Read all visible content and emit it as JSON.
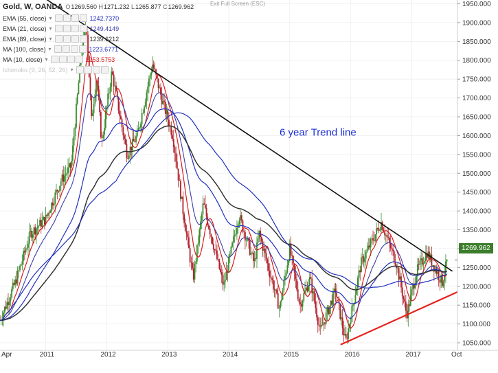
{
  "header": {
    "symbol": "Gold, W, OANDA",
    "open_label": "O",
    "open": "1269.560",
    "high_label": "H",
    "high": "1271.232",
    "low_label": "L",
    "low": "1265.877",
    "close_label": "C",
    "close": "1269.962",
    "exit_fullscreen": "Exit Full Screen (ESC)"
  },
  "indicators": [
    {
      "name": "EMA (55, close)",
      "value": "1242.7370",
      "color": "#1f2fbd"
    },
    {
      "name": "EMA (21, close)",
      "value": "1249.4149",
      "color": "#3a3fa6"
    },
    {
      "name": "EMA (89, close)",
      "value": "1239.6212",
      "color": "#333333"
    },
    {
      "name": "MA (100, close)",
      "value": "1223.6771",
      "color": "#1f2fbd"
    },
    {
      "name": "MA (10, close)",
      "value": "1253.5753",
      "color": "#d81b1b"
    },
    {
      "name": "Ichimoku (9, 26, 52, 26)",
      "value": "",
      "color": "#c7c7c7"
    }
  ],
  "current_price_tag": "1269.962",
  "colors": {
    "up": "#3b8c2e",
    "down": "#b0202a",
    "trend_black": "#111111",
    "trend_red": "#e8201a",
    "annotation": "#1c2fd6"
  },
  "chart_data": {
    "type": "line",
    "instrument": "Gold",
    "timeframe": "W",
    "x_axis": {
      "ticks": [
        "Apr",
        "2011",
        "2012",
        "2013",
        "2014",
        "2015",
        "2016",
        "2017",
        "Oct"
      ],
      "range": [
        "2010-04",
        "2017-10"
      ]
    },
    "y_axis": {
      "ticks": [
        1050,
        1100,
        1150,
        1200,
        1250,
        1300,
        1350,
        1400,
        1450,
        1500,
        1550,
        1600,
        1650,
        1700,
        1750,
        1800,
        1850,
        1900,
        1950
      ],
      "range": [
        1030,
        1960
      ]
    },
    "price_path": [
      [
        "2010-04",
        1110
      ],
      [
        "2010-07",
        1210
      ],
      [
        "2010-10",
        1340
      ],
      [
        "2011-01",
        1380
      ],
      [
        "2011-04",
        1480
      ],
      [
        "2011-06",
        1520
      ],
      [
        "2011-08",
        1820
      ],
      [
        "2011-09",
        1900
      ],
      [
        "2011-10",
        1640
      ],
      [
        "2011-11",
        1760
      ],
      [
        "2011-12",
        1580
      ],
      [
        "2012-02",
        1770
      ],
      [
        "2012-05",
        1550
      ],
      [
        "2012-07",
        1600
      ],
      [
        "2012-10",
        1790
      ],
      [
        "2012-12",
        1690
      ],
      [
        "2013-02",
        1600
      ],
      [
        "2013-04",
        1400
      ],
      [
        "2013-06",
        1220
      ],
      [
        "2013-08",
        1420
      ],
      [
        "2013-12",
        1200
      ],
      [
        "2014-03",
        1390
      ],
      [
        "2014-06",
        1260
      ],
      [
        "2014-07",
        1340
      ],
      [
        "2014-11",
        1140
      ],
      [
        "2015-01",
        1300
      ],
      [
        "2015-03",
        1150
      ],
      [
        "2015-05",
        1220
      ],
      [
        "2015-07",
        1080
      ],
      [
        "2015-10",
        1190
      ],
      [
        "2015-12",
        1050
      ],
      [
        "2016-03",
        1260
      ],
      [
        "2016-07",
        1370
      ],
      [
        "2016-10",
        1260
      ],
      [
        "2016-12",
        1125
      ],
      [
        "2017-02",
        1240
      ],
      [
        "2017-04",
        1290
      ],
      [
        "2017-07",
        1210
      ],
      [
        "2017-08",
        1270
      ]
    ],
    "moving_averages": [
      {
        "name": "MA (10, close)",
        "color": "#d81b1b"
      },
      {
        "name": "EMA (21, close)",
        "color": "#3a3fa6"
      },
      {
        "name": "EMA (55, close)",
        "color": "#1f2fbd"
      },
      {
        "name": "EMA (89, close)",
        "color": "#333333"
      },
      {
        "name": "MA (100, close)",
        "color": "#1f2fbd"
      }
    ],
    "trend_lines": [
      {
        "color": "black",
        "from": [
          "2010-10",
          1990
        ],
        "to": [
          "2017-09",
          1240
        ]
      },
      {
        "color": "red",
        "from": [
          "2015-11",
          1045
        ],
        "to": [
          "2017-10",
          1185
        ]
      }
    ],
    "annotations": [
      {
        "text": "6 year Trend line",
        "at": [
          "2014-11",
          1600
        ]
      }
    ],
    "last_price": 1269.962
  }
}
